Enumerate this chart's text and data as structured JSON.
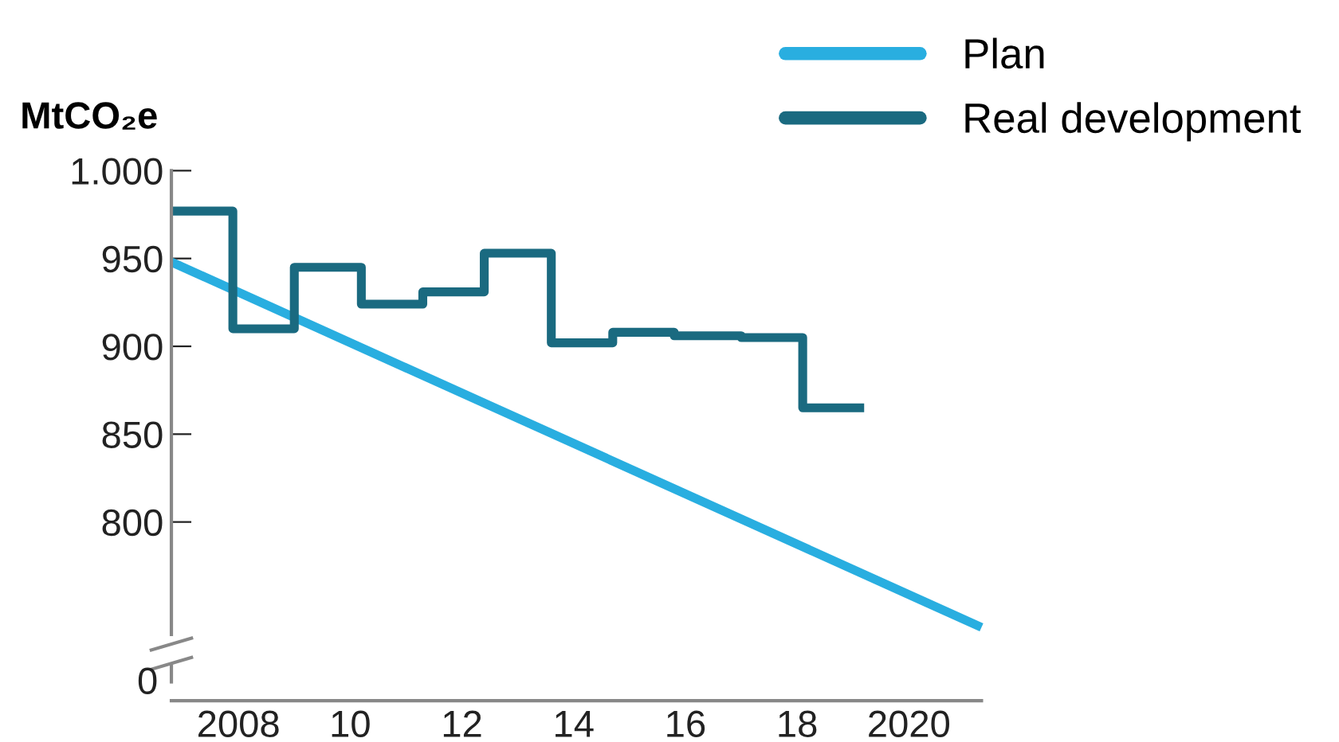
{
  "chart_data": {
    "type": "line",
    "ylabel": "MtCO₂e",
    "xlim": [
      2006.8,
      2021.3
    ],
    "xticks": [
      {
        "value": 2008,
        "label": "2008"
      },
      {
        "value": 2010,
        "label": "10"
      },
      {
        "value": 2012,
        "label": "12"
      },
      {
        "value": 2014,
        "label": "14"
      },
      {
        "value": 2016,
        "label": "16"
      },
      {
        "value": 2018,
        "label": "18"
      },
      {
        "value": 2020,
        "label": "2020"
      }
    ],
    "ylim": [
      736,
      1000
    ],
    "yticks": [
      800,
      850,
      900,
      950,
      {
        "value": 1000,
        "label": "1.000"
      }
    ],
    "annotations": [
      "0"
    ],
    "series": [
      {
        "name": "Plan",
        "color": "#29aee0",
        "x": [
          2006.8,
          2021.3
        ],
        "values": [
          948,
          740
        ]
      },
      {
        "name": "Real development",
        "type": "step",
        "color": "#1a6a80",
        "x": [
          2006.8,
          2007.9,
          2009.0,
          2010.2,
          2011.3,
          2012.4,
          2013.6,
          2014.7,
          2015.8,
          2017.0,
          2018.1,
          2019.2
        ],
        "values": [
          977,
          910,
          945,
          924,
          931,
          953,
          902,
          908,
          906,
          905,
          865,
          865
        ]
      }
    ],
    "legend": "top right",
    "grid": false,
    "marker": "none",
    "line_style": "solid"
  }
}
